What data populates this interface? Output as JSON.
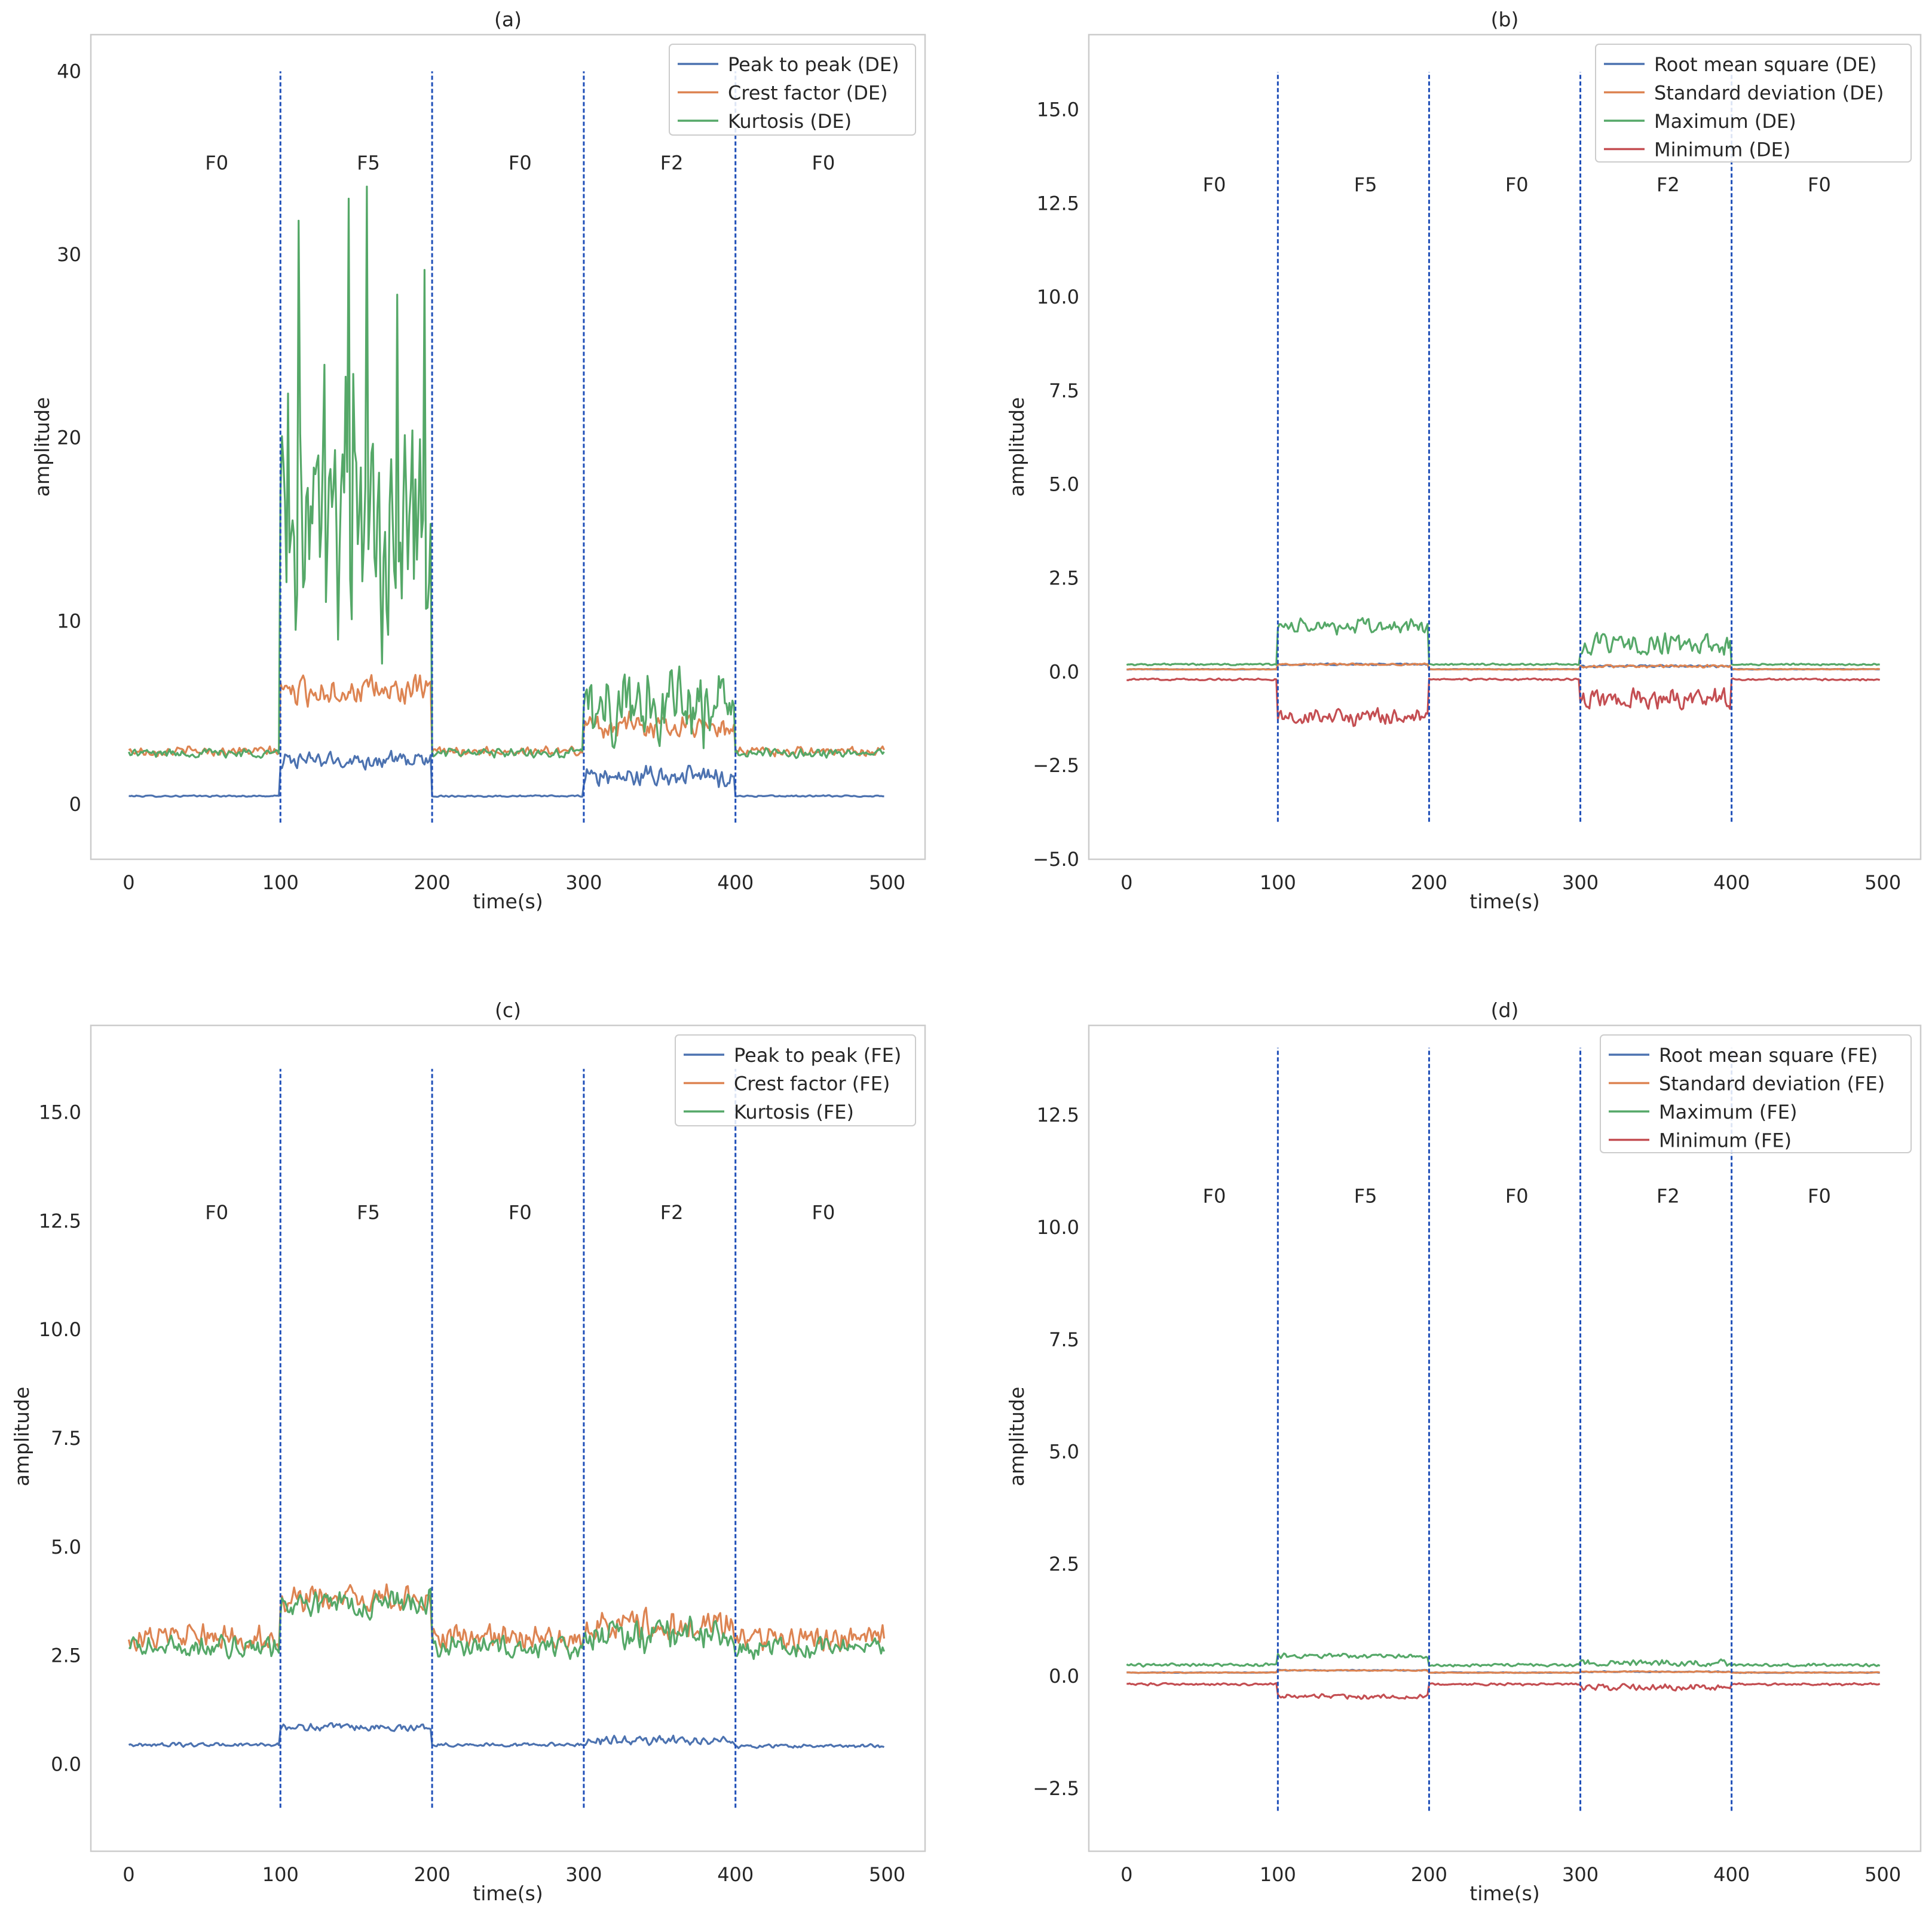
{
  "colors": {
    "blue": "#4c72b0",
    "orange": "#dd8452",
    "green": "#55a868",
    "red": "#c44e52",
    "divider": "#1f4fb8"
  },
  "chart_data": [
    {
      "id": "a",
      "type": "line",
      "title": "(a)",
      "xlabel": "time(s)",
      "ylabel": "amplitude",
      "xlim": [
        -25,
        525
      ],
      "ylim": [
        -3,
        42
      ],
      "xticks": [
        0,
        100,
        200,
        300,
        400,
        500
      ],
      "yticks": [
        0,
        10,
        20,
        30,
        40
      ],
      "ytick_labels": [
        "0",
        "10",
        "20",
        "30",
        "40"
      ],
      "grid": false,
      "legend_position": "top-right",
      "dividers": {
        "x": [
          100,
          200,
          300,
          400
        ],
        "y_from": -1,
        "y_to": 40
      },
      "regions": [
        {
          "label": "F0",
          "x": 58,
          "y": 35
        },
        {
          "label": "F5",
          "x": 158,
          "y": 35
        },
        {
          "label": "F0",
          "x": 258,
          "y": 35
        },
        {
          "label": "F2",
          "x": 358,
          "y": 35
        },
        {
          "label": "F0",
          "x": 458,
          "y": 35
        }
      ],
      "series": [
        {
          "name": "Peak to peak (DE)",
          "color": "#4c72b0",
          "profile": [
            [
              0,
              0.45,
              0.05
            ],
            [
              100,
              2.4,
              0.55
            ],
            [
              200,
              0.45,
              0.05
            ],
            [
              300,
              1.5,
              0.7
            ],
            [
              400,
              0.45,
              0.05
            ]
          ]
        },
        {
          "name": "Crest factor (DE)",
          "color": "#dd8452",
          "profile": [
            [
              0,
              2.9,
              0.3
            ],
            [
              100,
              6.2,
              0.9
            ],
            [
              200,
              2.9,
              0.3
            ],
            [
              300,
              4.3,
              0.8
            ],
            [
              400,
              2.9,
              0.3
            ]
          ]
        },
        {
          "name": "Kurtosis (DE)",
          "color": "#55a868",
          "profile": [
            [
              0,
              2.8,
              0.3
            ],
            [
              100,
              14,
              7.5
            ],
            [
              200,
              2.8,
              0.3
            ],
            [
              300,
              5.5,
              2.5
            ],
            [
              400,
              2.8,
              0.3
            ]
          ]
        }
      ]
    },
    {
      "id": "b",
      "type": "line",
      "title": "(b)",
      "xlabel": "time(s)",
      "ylabel": "amplitude",
      "xlim": [
        -25,
        525
      ],
      "ylim": [
        -5,
        17
      ],
      "xticks": [
        0,
        100,
        200,
        300,
        400,
        500
      ],
      "yticks": [
        -5,
        -2.5,
        0,
        2.5,
        5,
        7.5,
        10,
        12.5,
        15
      ],
      "ytick_labels": [
        "−5.0",
        "−2.5",
        "0.0",
        "2.5",
        "5.0",
        "7.5",
        "10.0",
        "12.5",
        "15.0"
      ],
      "grid": false,
      "legend_position": "top-right",
      "dividers": {
        "x": [
          100,
          200,
          300,
          400
        ],
        "y_from": -4,
        "y_to": 16
      },
      "regions": [
        {
          "label": "F0",
          "x": 58,
          "y": 13
        },
        {
          "label": "F5",
          "x": 158,
          "y": 13
        },
        {
          "label": "F0",
          "x": 258,
          "y": 13
        },
        {
          "label": "F2",
          "x": 358,
          "y": 13
        },
        {
          "label": "F0",
          "x": 458,
          "y": 13
        }
      ],
      "series": [
        {
          "name": "Root mean square (DE)",
          "color": "#4c72b0",
          "profile": [
            [
              0,
              0.07,
              0.01
            ],
            [
              100,
              0.2,
              0.03
            ],
            [
              200,
              0.07,
              0.01
            ],
            [
              300,
              0.15,
              0.04
            ],
            [
              400,
              0.07,
              0.01
            ]
          ]
        },
        {
          "name": "Standard deviation (DE)",
          "color": "#dd8452",
          "profile": [
            [
              0,
              0.07,
              0.01
            ],
            [
              100,
              0.2,
              0.03
            ],
            [
              200,
              0.07,
              0.01
            ],
            [
              300,
              0.15,
              0.04
            ],
            [
              400,
              0.07,
              0.01
            ]
          ]
        },
        {
          "name": "Maximum (DE)",
          "color": "#55a868",
          "profile": [
            [
              0,
              0.2,
              0.03
            ],
            [
              100,
              1.2,
              0.25
            ],
            [
              200,
              0.2,
              0.03
            ],
            [
              300,
              0.7,
              0.35
            ],
            [
              400,
              0.2,
              0.03
            ]
          ]
        },
        {
          "name": "Minimum (DE)",
          "color": "#c44e52",
          "profile": [
            [
              0,
              -0.2,
              0.03
            ],
            [
              100,
              -1.2,
              0.25
            ],
            [
              200,
              -0.2,
              0.03
            ],
            [
              300,
              -0.7,
              0.35
            ],
            [
              400,
              -0.2,
              0.03
            ]
          ]
        }
      ]
    },
    {
      "id": "c",
      "type": "line",
      "title": "(c)",
      "xlabel": "time(s)",
      "ylabel": "amplitude",
      "xlim": [
        -25,
        525
      ],
      "ylim": [
        -2,
        17
      ],
      "xticks": [
        0,
        100,
        200,
        300,
        400,
        500
      ],
      "yticks": [
        0,
        2.5,
        5,
        7.5,
        10,
        12.5,
        15
      ],
      "ytick_labels": [
        "0.0",
        "2.5",
        "5.0",
        "7.5",
        "10.0",
        "12.5",
        "15.0"
      ],
      "grid": false,
      "legend_position": "top-right",
      "dividers": {
        "x": [
          100,
          200,
          300,
          400
        ],
        "y_from": -1,
        "y_to": 16
      },
      "regions": [
        {
          "label": "F0",
          "x": 58,
          "y": 12.7
        },
        {
          "label": "F5",
          "x": 158,
          "y": 12.7
        },
        {
          "label": "F0",
          "x": 258,
          "y": 12.7
        },
        {
          "label": "F2",
          "x": 358,
          "y": 12.7
        },
        {
          "label": "F0",
          "x": 458,
          "y": 12.7
        }
      ],
      "series": [
        {
          "name": "Peak to peak (FE)",
          "color": "#4c72b0",
          "profile": [
            [
              0,
              0.45,
              0.05
            ],
            [
              100,
              0.85,
              0.1
            ],
            [
              200,
              0.45,
              0.05
            ],
            [
              300,
              0.55,
              0.12
            ],
            [
              400,
              0.42,
              0.05
            ]
          ]
        },
        {
          "name": "Crest factor (FE)",
          "color": "#dd8452",
          "profile": [
            [
              0,
              2.9,
              0.35
            ],
            [
              100,
              3.8,
              0.35
            ],
            [
              200,
              2.9,
              0.35
            ],
            [
              300,
              3.2,
              0.45
            ],
            [
              400,
              2.9,
              0.35
            ]
          ]
        },
        {
          "name": "Kurtosis (FE)",
          "color": "#55a868",
          "profile": [
            [
              0,
              2.7,
              0.3
            ],
            [
              100,
              3.7,
              0.4
            ],
            [
              200,
              2.7,
              0.3
            ],
            [
              300,
              3.0,
              0.45
            ],
            [
              400,
              2.7,
              0.3
            ]
          ]
        }
      ]
    },
    {
      "id": "d",
      "type": "line",
      "title": "(d)",
      "xlabel": "time(s)",
      "ylabel": "amplitude",
      "xlim": [
        -25,
        525
      ],
      "ylim": [
        -3.9,
        14.5
      ],
      "xticks": [
        0,
        100,
        200,
        300,
        400,
        500
      ],
      "yticks": [
        -2.5,
        0,
        2.5,
        5,
        7.5,
        10,
        12.5
      ],
      "ytick_labels": [
        "−2.5",
        "0.0",
        "2.5",
        "5.0",
        "7.5",
        "10.0",
        "12.5"
      ],
      "grid": false,
      "legend_position": "top-right",
      "dividers": {
        "x": [
          100,
          200,
          300,
          400
        ],
        "y_from": -3,
        "y_to": 14
      },
      "regions": [
        {
          "label": "F0",
          "x": 58,
          "y": 10.7
        },
        {
          "label": "F5",
          "x": 158,
          "y": 10.7
        },
        {
          "label": "F0",
          "x": 258,
          "y": 10.7
        },
        {
          "label": "F2",
          "x": 358,
          "y": 10.7
        },
        {
          "label": "F0",
          "x": 458,
          "y": 10.7
        }
      ],
      "series": [
        {
          "name": "Root mean square (FE)",
          "color": "#4c72b0",
          "profile": [
            [
              0,
              0.08,
              0.01
            ],
            [
              100,
              0.13,
              0.015
            ],
            [
              200,
              0.08,
              0.01
            ],
            [
              300,
              0.1,
              0.015
            ],
            [
              400,
              0.08,
              0.01
            ]
          ]
        },
        {
          "name": "Standard deviation (FE)",
          "color": "#dd8452",
          "profile": [
            [
              0,
              0.08,
              0.01
            ],
            [
              100,
              0.13,
              0.015
            ],
            [
              200,
              0.08,
              0.01
            ],
            [
              300,
              0.1,
              0.015
            ],
            [
              400,
              0.08,
              0.01
            ]
          ]
        },
        {
          "name": "Maximum (FE)",
          "color": "#55a868",
          "profile": [
            [
              0,
              0.25,
              0.04
            ],
            [
              100,
              0.45,
              0.06
            ],
            [
              200,
              0.25,
              0.04
            ],
            [
              300,
              0.3,
              0.08
            ],
            [
              400,
              0.25,
              0.04
            ]
          ]
        },
        {
          "name": "Minimum (FE)",
          "color": "#c44e52",
          "profile": [
            [
              0,
              -0.18,
              0.03
            ],
            [
              100,
              -0.45,
              0.06
            ],
            [
              200,
              -0.18,
              0.03
            ],
            [
              300,
              -0.25,
              0.08
            ],
            [
              400,
              -0.18,
              0.03
            ]
          ]
        }
      ]
    }
  ]
}
